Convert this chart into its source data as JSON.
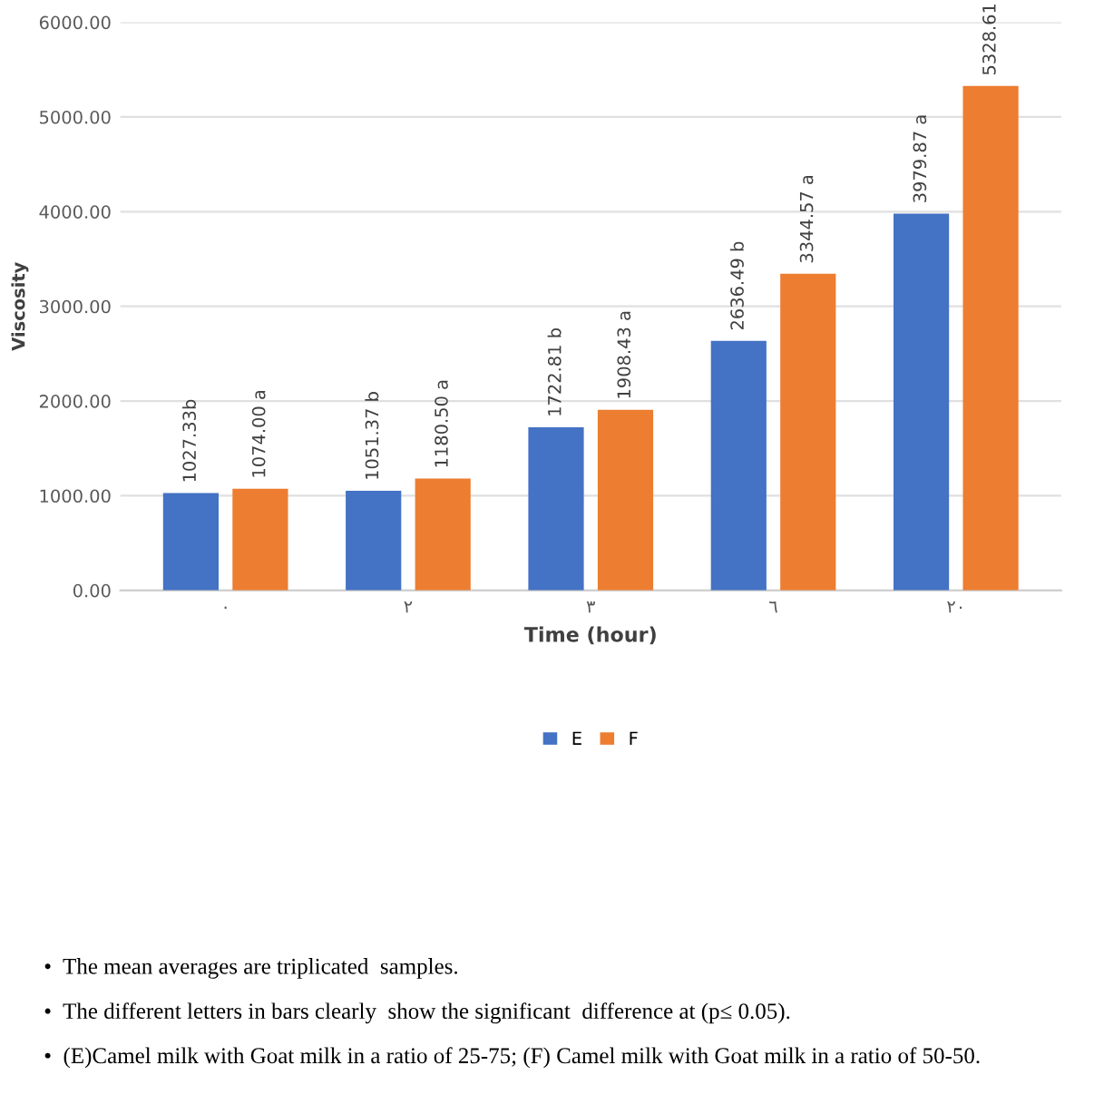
{
  "chart_data": {
    "type": "bar",
    "xlabel": "Time (hour)",
    "ylabel": "Viscosity",
    "categories": [
      "٠",
      "٢",
      "٣",
      "٦",
      "٢٠"
    ],
    "series": [
      {
        "name": "E",
        "color": "#4472c4",
        "values": [
          1027.33,
          1051.37,
          1722.81,
          2636.49,
          3979.87
        ],
        "value_labels": [
          "1027.33b",
          "1051.37 b",
          "1722.81 b",
          "2636.49 b",
          "3979.87 a"
        ]
      },
      {
        "name": "F",
        "color": "#ed7d31",
        "values": [
          1074.0,
          1180.5,
          1908.43,
          3344.57,
          5328.61
        ],
        "value_labels": [
          "1074.00 a",
          "1180.50 a",
          "1908.43 a",
          "3344.57 a",
          "5328.61"
        ]
      }
    ],
    "ylim": [
      0,
      6000
    ],
    "yticks": [
      {
        "value": 0,
        "label": "0.00"
      },
      {
        "value": 1000,
        "label": "1000.00"
      },
      {
        "value": 2000,
        "label": "2000.00"
      },
      {
        "value": 3000,
        "label": "3000.00"
      },
      {
        "value": 4000,
        "label": "4000.00"
      },
      {
        "value": 5000,
        "label": "5000.00"
      },
      {
        "value": 6000,
        "label": "6000.00"
      }
    ],
    "grid": "y",
    "legend": "bottom",
    "annotations": [
      "•  The mean averages are triplicated  samples.",
      "•  The different letters in bars clearly  show the significant  difference at (p≤ 0.05).",
      "•  (E)Camel milk with Goat milk in a ratio of 25-75; (F) Camel milk with Goat milk in a ratio of 50-50."
    ]
  }
}
